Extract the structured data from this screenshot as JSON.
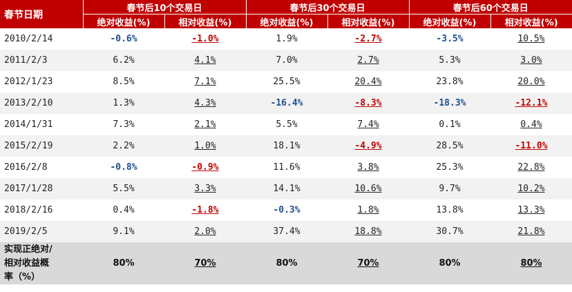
{
  "header": {
    "date_col": "春节日期",
    "groups": [
      "春节后10个交易日",
      "春节后30个交易日",
      "春节后60个交易日"
    ],
    "abs_label": "绝对收益(%)",
    "rel_label": "相对收益(%)"
  },
  "rows": [
    {
      "date": "2010/2/14",
      "vals": [
        "-0.6%",
        "-1.0%",
        "1.9%",
        "-2.7%",
        "-3.5%",
        "10.5%"
      ]
    },
    {
      "date": "2011/2/3",
      "vals": [
        "6.2%",
        "4.1%",
        "7.0%",
        "2.7%",
        "5.3%",
        "3.0%"
      ]
    },
    {
      "date": "2012/1/23",
      "vals": [
        "8.5%",
        "7.1%",
        "25.5%",
        "20.4%",
        "23.8%",
        "20.0%"
      ]
    },
    {
      "date": "2013/2/10",
      "vals": [
        "1.3%",
        "4.3%",
        "-16.4%",
        "-8.3%",
        "-18.3%",
        "-12.1%"
      ]
    },
    {
      "date": "2014/1/31",
      "vals": [
        "7.3%",
        "2.1%",
        "5.5%",
        "7.4%",
        "0.1%",
        "0.4%"
      ]
    },
    {
      "date": "2015/2/19",
      "vals": [
        "2.2%",
        "1.0%",
        "18.1%",
        "-4.9%",
        "28.5%",
        "-11.0%"
      ]
    },
    {
      "date": "2016/2/8",
      "vals": [
        "-0.8%",
        "-0.9%",
        "11.6%",
        "3.8%",
        "25.3%",
        "22.8%"
      ]
    },
    {
      "date": "2017/1/28",
      "vals": [
        "5.5%",
        "3.3%",
        "14.1%",
        "10.6%",
        "9.7%",
        "10.2%"
      ]
    },
    {
      "date": "2018/2/16",
      "vals": [
        "0.4%",
        "-1.8%",
        "-0.3%",
        "1.8%",
        "13.8%",
        "13.3%"
      ]
    },
    {
      "date": "2019/2/5",
      "vals": [
        "9.1%",
        "2.0%",
        "37.4%",
        "18.8%",
        "30.7%",
        "21.8%"
      ]
    }
  ],
  "footer": {
    "label": "实现正绝对/\n相对收益概\n率（%）",
    "vals": [
      "80%",
      "70%",
      "80%",
      "70%",
      "80%",
      "80%"
    ]
  },
  "colors": {
    "header_bg": "#c00000",
    "negative_abs": "#1f4e8c",
    "negative_rel": "#c00000",
    "footer_bg": "#d9d9d9",
    "stripe_bg": "#f2f2f2"
  }
}
